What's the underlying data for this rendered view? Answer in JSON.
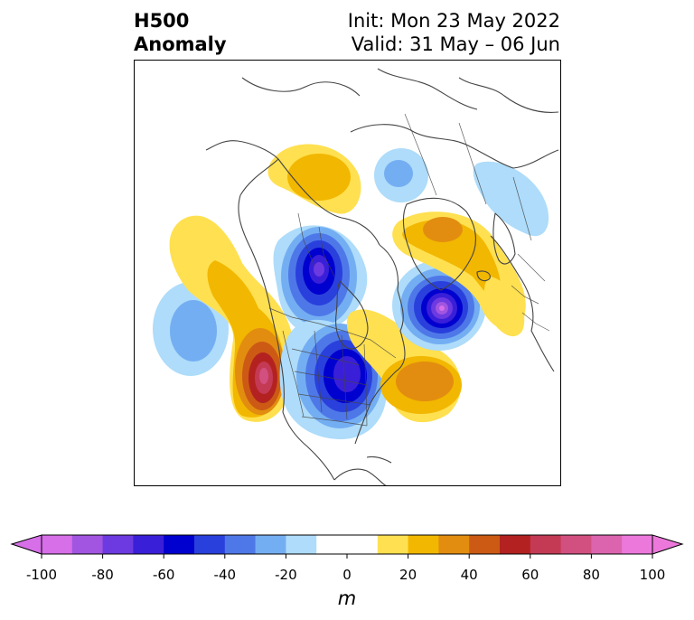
{
  "title": {
    "left_line1": "H500",
    "left_line2": "Anomaly",
    "right_line1": "Init: Mon 23 May 2022",
    "right_line2": "Valid: 31 May – 06 Jun"
  },
  "colorbar": {
    "unit": "m",
    "ticks": [
      "-100",
      "-80",
      "-60",
      "-40",
      "-20",
      "0",
      "20",
      "40",
      "60",
      "80",
      "100"
    ],
    "colors": [
      "#d66fe8",
      "#a155e0",
      "#6c3ae0",
      "#3a1fd8",
      "#0000cf",
      "#2a40dc",
      "#4e78e8",
      "#74aef2",
      "#aedcfa",
      "#ffffff",
      "#ffffff",
      "#ffe050",
      "#f2b700",
      "#e28d10",
      "#cc5a14",
      "#b32220",
      "#c43a55",
      "#d25080",
      "#dc64ae",
      "#ec78db"
    ]
  },
  "map": {
    "colors": {
      "blue_light": "#aedcfa",
      "blue_2": "#74aef2",
      "blue_3": "#4e78e8",
      "blue_4": "#2a40dc",
      "blue_5": "#0000cf",
      "blue_6": "#3a1fd8",
      "purple_1": "#6c3ae0",
      "purple_2": "#a155e0",
      "purple_3": "#d66fe8",
      "yellow": "#ffe050",
      "gold": "#f2b700",
      "orange": "#e28d10",
      "dark_orange": "#cc5a14",
      "red": "#b32220",
      "rose": "#c43a55",
      "pink": "#d25080",
      "coast": "#444444"
    }
  }
}
